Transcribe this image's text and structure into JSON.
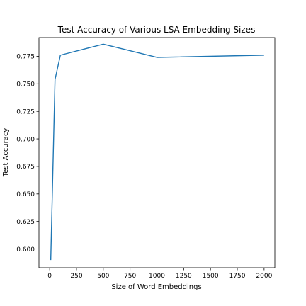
{
  "chart_data": {
    "type": "line",
    "title": "Test Accuracy of Various LSA Embedding Sizes",
    "xlabel": "Size of Word Embeddings",
    "ylabel": "Test Accuracy",
    "xlim": [
      -100,
      2100
    ],
    "ylim": [
      0.583,
      0.792
    ],
    "x_ticks": [
      0,
      250,
      500,
      750,
      1000,
      1250,
      1500,
      1750,
      2000
    ],
    "y_ticks": [
      0.6,
      0.625,
      0.65,
      0.675,
      0.7,
      0.725,
      0.75,
      0.775
    ],
    "y_tick_format": 3,
    "grid": false,
    "series": [
      {
        "color": "#1f77b4",
        "x": [
          10,
          50,
          100,
          500,
          1000,
          2000
        ],
        "y": [
          0.59,
          0.754,
          0.776,
          0.786,
          0.774,
          0.776
        ]
      }
    ]
  }
}
